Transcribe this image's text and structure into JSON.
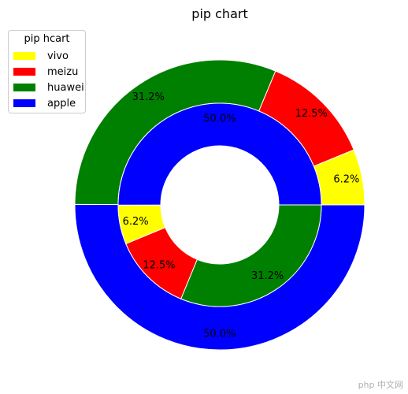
{
  "chart_data": {
    "type": "pie",
    "variant": "nested-donut",
    "title": "pip chart",
    "legend": {
      "title": "pip hcart",
      "placement": "top-left",
      "entries": [
        "vivo",
        "meizu",
        "huawei",
        "apple"
      ]
    },
    "categories": [
      "vivo",
      "meizu",
      "huawei",
      "apple"
    ],
    "colors": {
      "vivo": "#ffff00",
      "meizu": "#ff0000",
      "huawei": "#008000",
      "apple": "#0000ff"
    },
    "series": [
      {
        "ring": "outer",
        "categories": [
          "vivo",
          "meizu",
          "huawei",
          "apple"
        ],
        "values": [
          6.2,
          12.5,
          31.2,
          50.0
        ],
        "labels": [
          "6.2%",
          "12.5%",
          "31.2%",
          "50.0%"
        ]
      },
      {
        "ring": "inner",
        "categories": [
          "apple",
          "vivo",
          "meizu",
          "huawei"
        ],
        "values": [
          50.0,
          6.2,
          12.5,
          31.2
        ],
        "labels": [
          "50.0%",
          "6.2%",
          "12.5%",
          "31.2%"
        ]
      }
    ]
  },
  "watermark": "php 中文网"
}
